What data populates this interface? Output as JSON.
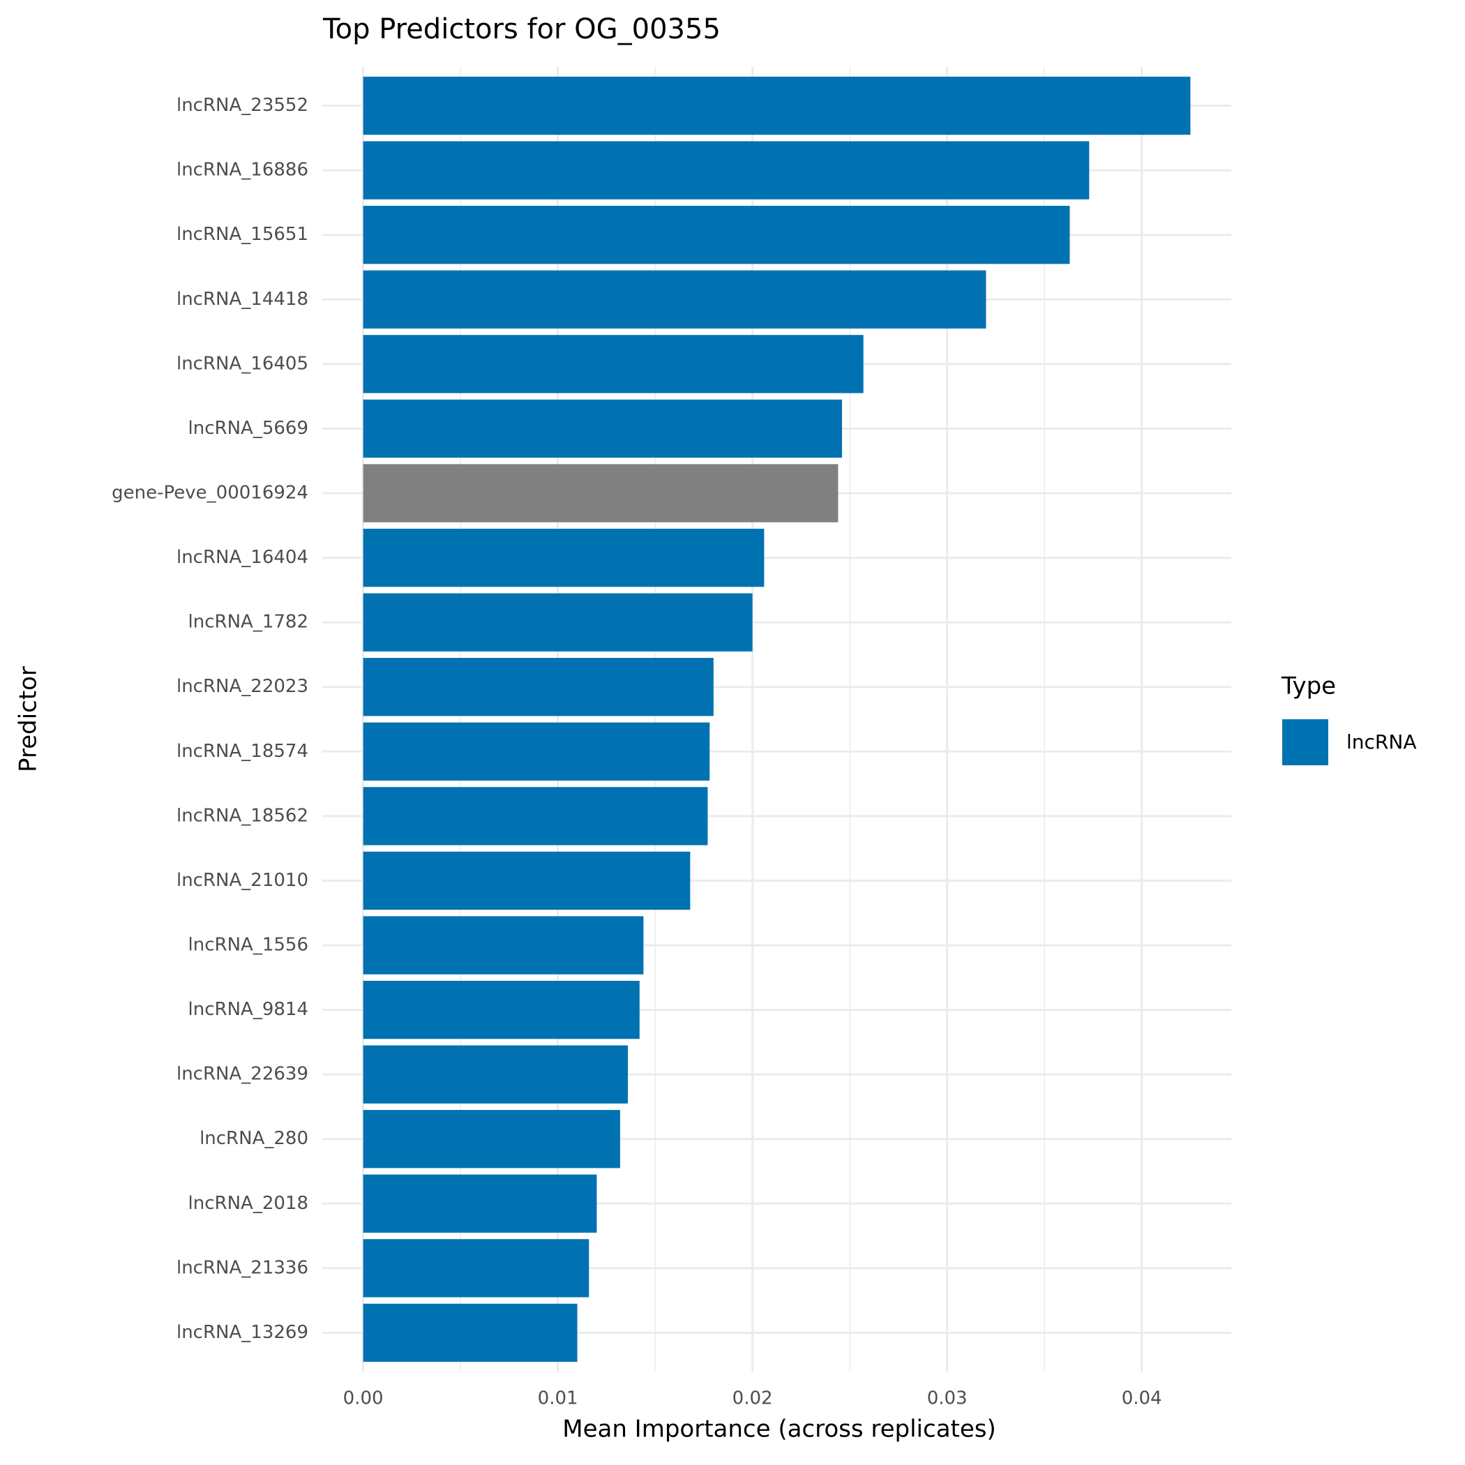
{
  "chart_data": {
    "type": "hbar",
    "title": "Top Predictors for OG_00355",
    "x_label": "Mean Importance (across replicates)",
    "y_label": "Predictor",
    "categories": [
      "lncRNA_23552",
      "lncRNA_16886",
      "lncRNA_15651",
      "lncRNA_14418",
      "lncRNA_16405",
      "lncRNA_5669",
      "gene-Peve_00016924",
      "lncRNA_16404",
      "lncRNA_1782",
      "lncRNA_22023",
      "lncRNA_18574",
      "lncRNA_18562",
      "lncRNA_21010",
      "lncRNA_1556",
      "lncRNA_9814",
      "lncRNA_22639",
      "lncRNA_280",
      "lncRNA_2018",
      "lncRNA_21336",
      "lncRNA_13269"
    ],
    "values": [
      0.0425,
      0.0373,
      0.0363,
      0.032,
      0.0257,
      0.0246,
      0.0244,
      0.0206,
      0.02,
      0.018,
      0.0178,
      0.0177,
      0.0168,
      0.0144,
      0.0142,
      0.0136,
      0.0132,
      0.012,
      0.0116,
      0.011
    ],
    "colors": [
      "#0072b2",
      "#0072b2",
      "#0072b2",
      "#0072b2",
      "#0072b2",
      "#0072b2",
      "#808080",
      "#0072b2",
      "#0072b2",
      "#0072b2",
      "#0072b2",
      "#0072b2",
      "#0072b2",
      "#0072b2",
      "#0072b2",
      "#0072b2",
      "#0072b2",
      "#0072b2",
      "#0072b2",
      "#0072b2"
    ],
    "xlim": [
      -0.0021,
      0.0446
    ],
    "xticks": [
      {
        "value": 0,
        "label": "0.00"
      },
      {
        "value": 0.01,
        "label": "0.01"
      },
      {
        "value": 0.02,
        "label": "0.02"
      },
      {
        "value": 0.03,
        "label": "0.03"
      },
      {
        "value": 0.04,
        "label": "0.04"
      }
    ],
    "x_minor_grid": [
      0.005,
      0.015,
      0.025,
      0.035
    ],
    "grid": true,
    "legend": {
      "title": "Type",
      "position": "right",
      "entries": [
        {
          "label": "lncRNA",
          "color": "#0072b2"
        }
      ]
    }
  }
}
